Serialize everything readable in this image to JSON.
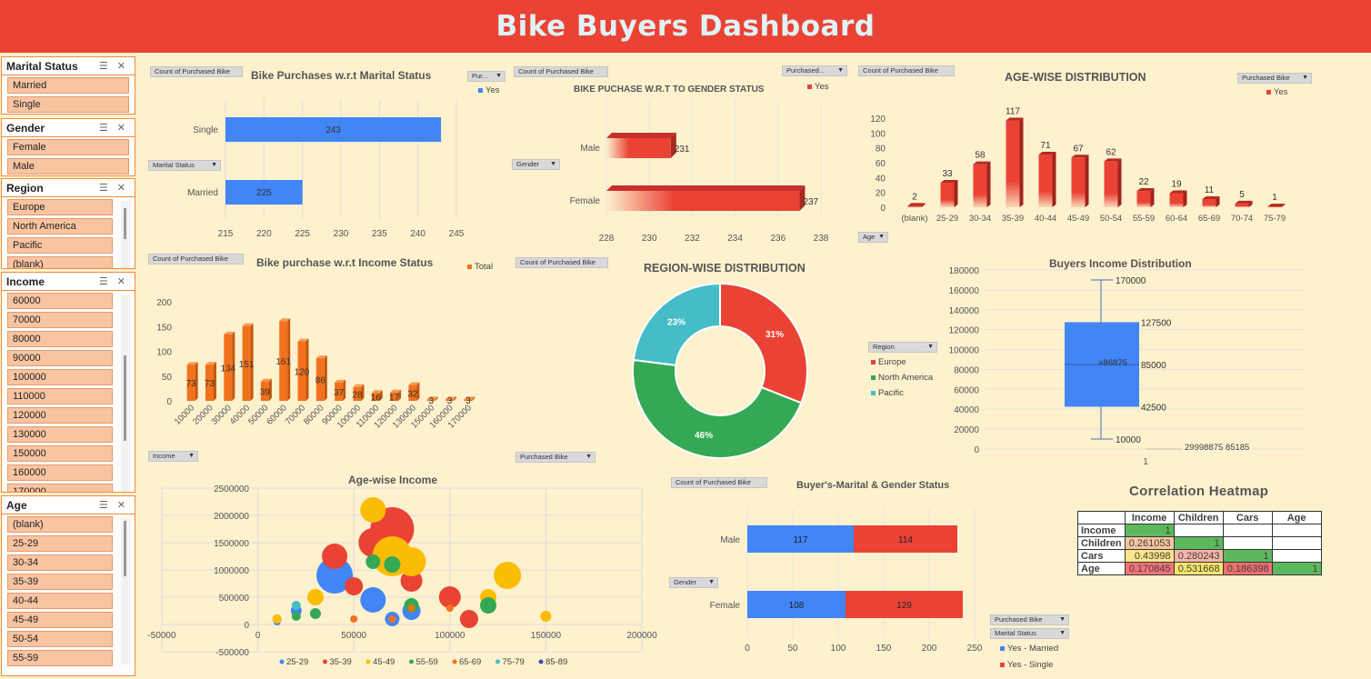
{
  "title": "Bike Buyers Dashboard",
  "slicers": [
    {
      "title": "Marital Status",
      "items": [
        "Married",
        "Single"
      ]
    },
    {
      "title": "Gender",
      "items": [
        "Female",
        "Male"
      ]
    },
    {
      "title": "Region",
      "items": [
        "Europe",
        "North America",
        "Pacific",
        "(blank)"
      ]
    },
    {
      "title": "Income",
      "items": [
        "60000",
        "70000",
        "80000",
        "90000",
        "100000",
        "110000",
        "120000",
        "130000",
        "150000",
        "160000",
        "170000"
      ]
    },
    {
      "title": "Age",
      "items": [
        "(blank)",
        "25-29",
        "30-34",
        "35-39",
        "40-44",
        "45-49",
        "50-54",
        "55-59"
      ]
    }
  ],
  "pills": {
    "count": "Count of Purchased Bike",
    "pur": "Pur...",
    "purchased_trunc": "Purchased...",
    "purchased_bike": "Purchased Bike",
    "marital": "Marital Status",
    "gender": "Gender",
    "age": "Age",
    "income": "Income",
    "region": "Region"
  },
  "legends": {
    "yes": "Yes",
    "total": "Total",
    "europe": "Europe",
    "north_america": "North America",
    "pacific": "Pacific",
    "yes_married": "Yes - Married",
    "yes_single": "Yes - Single"
  },
  "colors": {
    "blue": "#4285f4",
    "red": "#ea4335",
    "orange": "#f2711c",
    "green": "#34a853",
    "teal": "#46bdc6",
    "yellow": "#fbbc04",
    "header": "#ea4335"
  },
  "chart_data": [
    {
      "id": "marital",
      "type": "bar",
      "orientation": "horizontal",
      "title": "Bike Purchases w.r.t Marital Status",
      "categories": [
        "Married",
        "Single"
      ],
      "series": [
        {
          "name": "Yes",
          "values": [
            225,
            243
          ]
        }
      ],
      "xlim": [
        215,
        245
      ],
      "xticks": [
        215,
        220,
        225,
        230,
        235,
        240,
        245
      ]
    },
    {
      "id": "gender",
      "type": "bar",
      "orientation": "horizontal",
      "title": "BIKE PUCHASE W.R.T TO GENDER STATUS",
      "categories": [
        "Female",
        "Male"
      ],
      "series": [
        {
          "name": "Yes",
          "values": [
            237,
            231
          ]
        }
      ],
      "xlim": [
        228,
        238
      ],
      "xticks": [
        228,
        230,
        232,
        234,
        236,
        238
      ]
    },
    {
      "id": "age",
      "type": "bar",
      "title": "AGE-WISE DISTRIBUTION",
      "categories": [
        "(blank)",
        "25-29",
        "30-34",
        "35-39",
        "40-44",
        "45-49",
        "50-54",
        "55-59",
        "60-64",
        "65-69",
        "70-74",
        "75-79"
      ],
      "series": [
        {
          "name": "Yes",
          "values": [
            2,
            33,
            58,
            117,
            71,
            67,
            62,
            22,
            19,
            11,
            5,
            1
          ]
        }
      ],
      "ylim": [
        0,
        120
      ],
      "yticks": [
        0,
        20,
        40,
        60,
        80,
        100,
        120
      ]
    },
    {
      "id": "income",
      "type": "bar",
      "title": "Bike purchase w.r.t Income Status",
      "categories": [
        "10000",
        "20000",
        "30000",
        "40000",
        "50000",
        "60000",
        "70000",
        "80000",
        "90000",
        "100000",
        "110000",
        "120000",
        "130000",
        "150000",
        "160000",
        "170000"
      ],
      "series": [
        {
          "name": "Total",
          "values": [
            73,
            73,
            134,
            151,
            39,
            161,
            120,
            86,
            37,
            28,
            16,
            17,
            32,
            3,
            3,
            3
          ]
        }
      ],
      "ylim": [
        0,
        200
      ],
      "yticks": [
        0,
        50,
        100,
        150,
        200
      ]
    },
    {
      "id": "region",
      "type": "pie",
      "title": "REGION-WISE DISTRIBUTION",
      "labels": [
        "Europe",
        "North America",
        "Pacific"
      ],
      "values": [
        31,
        46,
        23
      ],
      "labels_text": [
        "31%",
        "46%",
        "23%"
      ]
    },
    {
      "id": "box",
      "type": "box",
      "title": "Buyers Income Distribution",
      "min": 10000,
      "q1": 42500,
      "median": 85000,
      "mean": 86875,
      "q3": 127500,
      "max": 170000,
      "xlabel": "1",
      "ylim": [
        0,
        180000
      ],
      "yticks": [
        0,
        20000,
        40000,
        60000,
        80000,
        100000,
        120000,
        140000,
        160000,
        180000
      ],
      "label_texts": [
        "170000",
        "127500",
        "85000",
        "42500",
        "10000",
        "86875"
      ],
      "overlap_text": "29998875 85185"
    },
    {
      "id": "bubble",
      "type": "scatter",
      "title": "Age-wise Income",
      "xlim": [
        -50000,
        200000
      ],
      "xticks": [
        -50000,
        0,
        50000,
        100000,
        150000,
        200000
      ],
      "ylim": [
        -500000,
        2500000
      ],
      "yticks": [
        -500000,
        0,
        500000,
        1000000,
        1500000,
        2000000,
        2500000
      ],
      "series": [
        {
          "name": "25-29",
          "color": "#4285f4",
          "points": [
            [
              10000,
              50000,
              4
            ],
            [
              20000,
              250000,
              6
            ],
            [
              40000,
              900000,
              20
            ],
            [
              60000,
              450000,
              14
            ],
            [
              80000,
              250000,
              10
            ],
            [
              70000,
              100000,
              8
            ]
          ]
        },
        {
          "name": "35-39",
          "color": "#ea4335",
          "points": [
            [
              40000,
              1250000,
              14
            ],
            [
              60000,
              1500000,
              16
            ],
            [
              70000,
              1750000,
              24
            ],
            [
              50000,
              700000,
              10
            ],
            [
              80000,
              800000,
              12
            ],
            [
              100000,
              500000,
              12
            ],
            [
              110000,
              100000,
              10
            ],
            [
              10000,
              100000,
              5
            ],
            [
              30000,
              500000,
              7
            ]
          ]
        },
        {
          "name": "45-49",
          "color": "#fbbc04",
          "points": [
            [
              60000,
              2100000,
              14
            ],
            [
              70000,
              1250000,
              22
            ],
            [
              80000,
              1150000,
              16
            ],
            [
              130000,
              900000,
              15
            ],
            [
              120000,
              500000,
              9
            ],
            [
              150000,
              150000,
              6
            ],
            [
              10000,
              100000,
              5
            ],
            [
              30000,
              500000,
              9
            ]
          ]
        },
        {
          "name": "55-59",
          "color": "#34a853",
          "points": [
            [
              60000,
              1150000,
              8
            ],
            [
              70000,
              1100000,
              9
            ],
            [
              80000,
              350000,
              8
            ],
            [
              120000,
              350000,
              9
            ],
            [
              30000,
              200000,
              6
            ],
            [
              20000,
              150000,
              5
            ]
          ]
        },
        {
          "name": "65-69",
          "color": "#f2711c",
          "points": [
            [
              70000,
              100000,
              4
            ],
            [
              80000,
              300000,
              4
            ],
            [
              50000,
              100000,
              4
            ],
            [
              100000,
              300000,
              4
            ]
          ]
        },
        {
          "name": "75-79",
          "color": "#46bdc6",
          "points": [
            [
              20000,
              350000,
              5
            ]
          ]
        },
        {
          "name": "85-89",
          "color": "#3c4fb5",
          "points": []
        }
      ]
    },
    {
      "id": "mgstatus",
      "type": "bar",
      "orientation": "horizontal",
      "stacked": true,
      "title": "Buyer's-Marital & Gender Status",
      "categories": [
        "Female",
        "Male"
      ],
      "series": [
        {
          "name": "Yes - Married",
          "values": [
            108,
            117
          ]
        },
        {
          "name": "Yes - Single",
          "values": [
            129,
            114
          ]
        }
      ],
      "xlim": [
        0,
        250
      ],
      "xticks": [
        0,
        50,
        100,
        150,
        200,
        250
      ]
    },
    {
      "id": "corr",
      "type": "heatmap",
      "title": "Correlation Heatmap",
      "columns": [
        "Income",
        "Children",
        "Cars",
        "Age"
      ],
      "rows": [
        {
          "label": "Income",
          "values": [
            "1",
            "",
            "",
            ""
          ],
          "colors": [
            "#5cb85c",
            "",
            "",
            ""
          ]
        },
        {
          "label": "Children",
          "values": [
            "0.261053",
            "1",
            "",
            ""
          ],
          "colors": [
            "#f8c4a2",
            "#5cb85c",
            "",
            ""
          ]
        },
        {
          "label": "Cars",
          "values": [
            "0.43998",
            "0.280243",
            "1",
            ""
          ],
          "colors": [
            "#fde58a",
            "#f8b4a8",
            "#5cb85c",
            ""
          ]
        },
        {
          "label": "Age",
          "values": [
            "0.170845",
            "0.531668",
            "0.186398",
            "1"
          ],
          "colors": [
            "#f4747a",
            "#f7e66a",
            "#f06f6f",
            "#5cb85c"
          ]
        }
      ]
    }
  ]
}
